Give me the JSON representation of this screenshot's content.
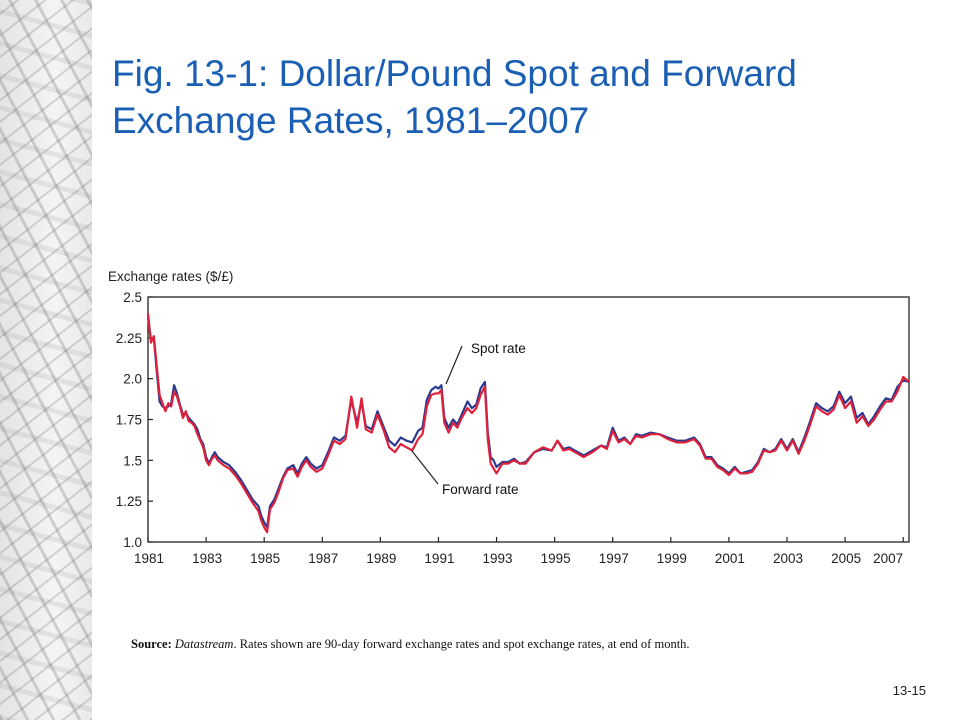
{
  "slide": {
    "title": "Fig. 13-1: Dollar/Pound Spot and Forward Exchange Rates, 1981–2007",
    "source_label": "Source:",
    "source_name": "Datastream",
    "source_text": ". Rates shown are 90-day forward exchange rates and spot exchange rates, at end of month.",
    "page_number": "13-15"
  },
  "chart_data": {
    "type": "line",
    "ylabel": "Exchange rates ($/£)",
    "ylim": [
      1.0,
      2.5
    ],
    "xlim": [
      1981,
      2007.2
    ],
    "yticks": [
      1.0,
      1.25,
      1.5,
      1.75,
      2.0,
      2.25,
      2.5
    ],
    "ytick_labels": [
      "1.0",
      "1.25",
      "1.5",
      "1.75",
      "2.0",
      "2.25",
      "2.5"
    ],
    "xtick_labels": [
      "1981",
      "1983",
      "1985",
      "1987",
      "1989",
      "1991",
      "1993",
      "1995",
      "1997",
      "1999",
      "2001",
      "2003",
      "2005",
      "2007"
    ],
    "grid": false,
    "colors": {
      "spot": "#2b3a8f",
      "forward": "#e0203a",
      "axis": "#222222",
      "title": "#1a5fb4"
    },
    "annotations": [
      {
        "text": "Spot rate",
        "series": "Spot rate"
      },
      {
        "text": "Forward rate",
        "series": "Forward rate"
      }
    ],
    "series": [
      {
        "name": "Spot rate",
        "x": [
          1981.0,
          1981.1,
          1981.2,
          1981.3,
          1981.4,
          1981.5,
          1981.6,
          1981.7,
          1981.8,
          1981.9,
          1982.0,
          1982.1,
          1982.2,
          1982.3,
          1982.4,
          1982.5,
          1982.6,
          1982.7,
          1982.8,
          1982.9,
          1983.0,
          1983.1,
          1983.2,
          1983.3,
          1983.4,
          1983.6,
          1983.8,
          1984.0,
          1984.2,
          1984.4,
          1984.6,
          1984.8,
          1984.9,
          1985.0,
          1985.1,
          1985.2,
          1985.35,
          1985.5,
          1985.65,
          1985.8,
          1986.0,
          1986.15,
          1986.3,
          1986.45,
          1986.6,
          1986.8,
          1987.0,
          1987.2,
          1987.4,
          1987.6,
          1987.8,
          1988.0,
          1988.2,
          1988.35,
          1988.5,
          1988.7,
          1988.9,
          1989.1,
          1989.3,
          1989.5,
          1989.7,
          1989.9,
          1990.1,
          1990.3,
          1990.45,
          1990.6,
          1990.75,
          1990.9,
          1991.0,
          1991.1,
          1991.2,
          1991.35,
          1991.5,
          1991.65,
          1991.8,
          1992.0,
          1992.15,
          1992.3,
          1992.45,
          1992.6,
          1992.7,
          1992.8,
          1992.9,
          1993.0,
          1993.2,
          1993.4,
          1993.6,
          1993.8,
          1994.0,
          1994.3,
          1994.6,
          1994.9,
          1995.1,
          1995.3,
          1995.5,
          1995.8,
          1996.0,
          1996.3,
          1996.6,
          1996.8,
          1997.0,
          1997.2,
          1997.4,
          1997.6,
          1997.8,
          1998.0,
          1998.3,
          1998.6,
          1998.9,
          1999.2,
          1999.5,
          1999.8,
          2000.0,
          2000.2,
          2000.4,
          2000.6,
          2000.8,
          2001.0,
          2001.2,
          2001.4,
          2001.6,
          2001.8,
          2002.0,
          2002.2,
          2002.4,
          2002.6,
          2002.8,
          2003.0,
          2003.2,
          2003.4,
          2003.6,
          2003.8,
          2004.0,
          2004.2,
          2004.4,
          2004.6,
          2004.8,
          2005.0,
          2005.2,
          2005.4,
          2005.6,
          2005.8,
          2006.0,
          2006.2,
          2006.4,
          2006.6,
          2006.8,
          2007.0,
          2007.2
        ],
        "y": [
          2.38,
          2.24,
          2.25,
          2.05,
          1.86,
          1.83,
          1.82,
          1.83,
          1.85,
          1.96,
          1.91,
          1.84,
          1.78,
          1.79,
          1.76,
          1.74,
          1.72,
          1.69,
          1.63,
          1.6,
          1.52,
          1.48,
          1.52,
          1.55,
          1.52,
          1.49,
          1.47,
          1.43,
          1.38,
          1.32,
          1.26,
          1.22,
          1.16,
          1.12,
          1.09,
          1.22,
          1.26,
          1.33,
          1.4,
          1.45,
          1.47,
          1.42,
          1.48,
          1.52,
          1.48,
          1.45,
          1.47,
          1.55,
          1.64,
          1.62,
          1.65,
          1.87,
          1.73,
          1.86,
          1.71,
          1.69,
          1.8,
          1.71,
          1.62,
          1.59,
          1.64,
          1.62,
          1.61,
          1.68,
          1.7,
          1.87,
          1.93,
          1.95,
          1.94,
          1.96,
          1.76,
          1.7,
          1.75,
          1.72,
          1.78,
          1.86,
          1.82,
          1.84,
          1.94,
          1.98,
          1.67,
          1.52,
          1.5,
          1.46,
          1.49,
          1.49,
          1.51,
          1.48,
          1.49,
          1.55,
          1.57,
          1.56,
          1.62,
          1.57,
          1.58,
          1.55,
          1.53,
          1.56,
          1.59,
          1.58,
          1.7,
          1.62,
          1.64,
          1.6,
          1.66,
          1.65,
          1.67,
          1.66,
          1.64,
          1.62,
          1.62,
          1.64,
          1.6,
          1.52,
          1.52,
          1.47,
          1.45,
          1.42,
          1.46,
          1.42,
          1.43,
          1.44,
          1.49,
          1.57,
          1.55,
          1.57,
          1.63,
          1.57,
          1.63,
          1.55,
          1.64,
          1.74,
          1.85,
          1.82,
          1.8,
          1.83,
          1.92,
          1.85,
          1.89,
          1.76,
          1.79,
          1.72,
          1.77,
          1.83,
          1.88,
          1.87,
          1.95,
          1.99,
          1.98
        ]
      },
      {
        "name": "Forward rate",
        "x": [
          1981.0,
          1981.1,
          1981.2,
          1981.3,
          1981.4,
          1981.5,
          1981.6,
          1981.7,
          1981.8,
          1981.9,
          1982.0,
          1982.1,
          1982.2,
          1982.3,
          1982.4,
          1982.5,
          1982.6,
          1982.7,
          1982.8,
          1982.9,
          1983.0,
          1983.1,
          1983.2,
          1983.3,
          1983.4,
          1983.6,
          1983.8,
          1984.0,
          1984.2,
          1984.4,
          1984.6,
          1984.8,
          1984.9,
          1985.0,
          1985.1,
          1985.2,
          1985.35,
          1985.5,
          1985.65,
          1985.8,
          1986.0,
          1986.15,
          1986.3,
          1986.45,
          1986.6,
          1986.8,
          1987.0,
          1987.2,
          1987.4,
          1987.6,
          1987.8,
          1988.0,
          1988.2,
          1988.35,
          1988.5,
          1988.7,
          1988.9,
          1989.1,
          1989.3,
          1989.5,
          1989.7,
          1989.9,
          1990.1,
          1990.3,
          1990.45,
          1990.6,
          1990.75,
          1990.9,
          1991.0,
          1991.1,
          1991.2,
          1991.35,
          1991.5,
          1991.65,
          1991.8,
          1992.0,
          1992.15,
          1992.3,
          1992.45,
          1992.6,
          1992.7,
          1992.8,
          1992.9,
          1993.0,
          1993.2,
          1993.4,
          1993.6,
          1993.8,
          1994.0,
          1994.3,
          1994.6,
          1994.9,
          1995.1,
          1995.3,
          1995.5,
          1995.8,
          1996.0,
          1996.3,
          1996.6,
          1996.8,
          1997.0,
          1997.2,
          1997.4,
          1997.6,
          1997.8,
          1998.0,
          1998.3,
          1998.6,
          1998.9,
          1999.2,
          1999.5,
          1999.8,
          2000.0,
          2000.2,
          2000.4,
          2000.6,
          2000.8,
          2001.0,
          2001.2,
          2001.4,
          2001.6,
          2001.8,
          2002.0,
          2002.2,
          2002.4,
          2002.6,
          2002.8,
          2003.0,
          2003.2,
          2003.4,
          2003.6,
          2003.8,
          2004.0,
          2004.2,
          2004.4,
          2004.6,
          2004.8,
          2005.0,
          2005.2,
          2005.4,
          2005.6,
          2005.8,
          2006.0,
          2006.2,
          2006.4,
          2006.6,
          2006.8,
          2007.0,
          2007.2
        ],
        "y": [
          2.4,
          2.22,
          2.26,
          2.08,
          1.9,
          1.85,
          1.8,
          1.85,
          1.83,
          1.92,
          1.89,
          1.83,
          1.76,
          1.8,
          1.74,
          1.73,
          1.71,
          1.66,
          1.62,
          1.58,
          1.5,
          1.47,
          1.51,
          1.53,
          1.5,
          1.47,
          1.45,
          1.41,
          1.36,
          1.3,
          1.24,
          1.19,
          1.13,
          1.09,
          1.06,
          1.2,
          1.24,
          1.31,
          1.39,
          1.44,
          1.45,
          1.4,
          1.46,
          1.5,
          1.46,
          1.43,
          1.45,
          1.53,
          1.62,
          1.6,
          1.63,
          1.89,
          1.7,
          1.88,
          1.69,
          1.67,
          1.78,
          1.69,
          1.58,
          1.55,
          1.6,
          1.58,
          1.56,
          1.63,
          1.66,
          1.83,
          1.9,
          1.91,
          1.91,
          1.93,
          1.73,
          1.67,
          1.73,
          1.7,
          1.76,
          1.82,
          1.79,
          1.82,
          1.9,
          1.95,
          1.63,
          1.48,
          1.45,
          1.42,
          1.48,
          1.48,
          1.5,
          1.48,
          1.48,
          1.55,
          1.58,
          1.56,
          1.62,
          1.56,
          1.57,
          1.54,
          1.52,
          1.55,
          1.59,
          1.57,
          1.68,
          1.61,
          1.63,
          1.6,
          1.65,
          1.64,
          1.66,
          1.66,
          1.63,
          1.61,
          1.61,
          1.63,
          1.59,
          1.51,
          1.51,
          1.46,
          1.44,
          1.41,
          1.45,
          1.42,
          1.42,
          1.43,
          1.48,
          1.56,
          1.55,
          1.56,
          1.62,
          1.56,
          1.62,
          1.54,
          1.62,
          1.72,
          1.83,
          1.8,
          1.78,
          1.81,
          1.9,
          1.82,
          1.86,
          1.73,
          1.77,
          1.71,
          1.75,
          1.81,
          1.86,
          1.86,
          1.92,
          2.01,
          1.98
        ]
      }
    ]
  }
}
